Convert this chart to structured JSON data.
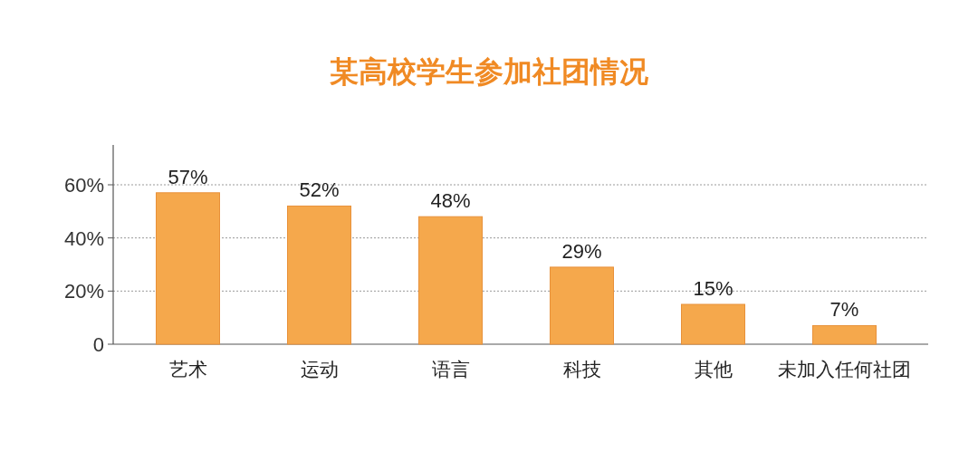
{
  "chart_data": {
    "type": "bar",
    "title": "某高校学生参加社团情况",
    "categories": [
      "艺术",
      "运动",
      "语言",
      "科技",
      "其他",
      "未加入任何社团"
    ],
    "values": [
      57,
      52,
      48,
      29,
      15,
      7
    ],
    "value_labels": [
      "57%",
      "52%",
      "48%",
      "29%",
      "15%",
      "7%"
    ],
    "color": "#f5a84c",
    "ylim": [
      0,
      75
    ],
    "yticks": [
      {
        "value": 0,
        "label": "0"
      },
      {
        "value": 20,
        "label": "20%"
      },
      {
        "value": 40,
        "label": "40%"
      },
      {
        "value": 60,
        "label": "60%"
      }
    ],
    "grid": "y"
  }
}
